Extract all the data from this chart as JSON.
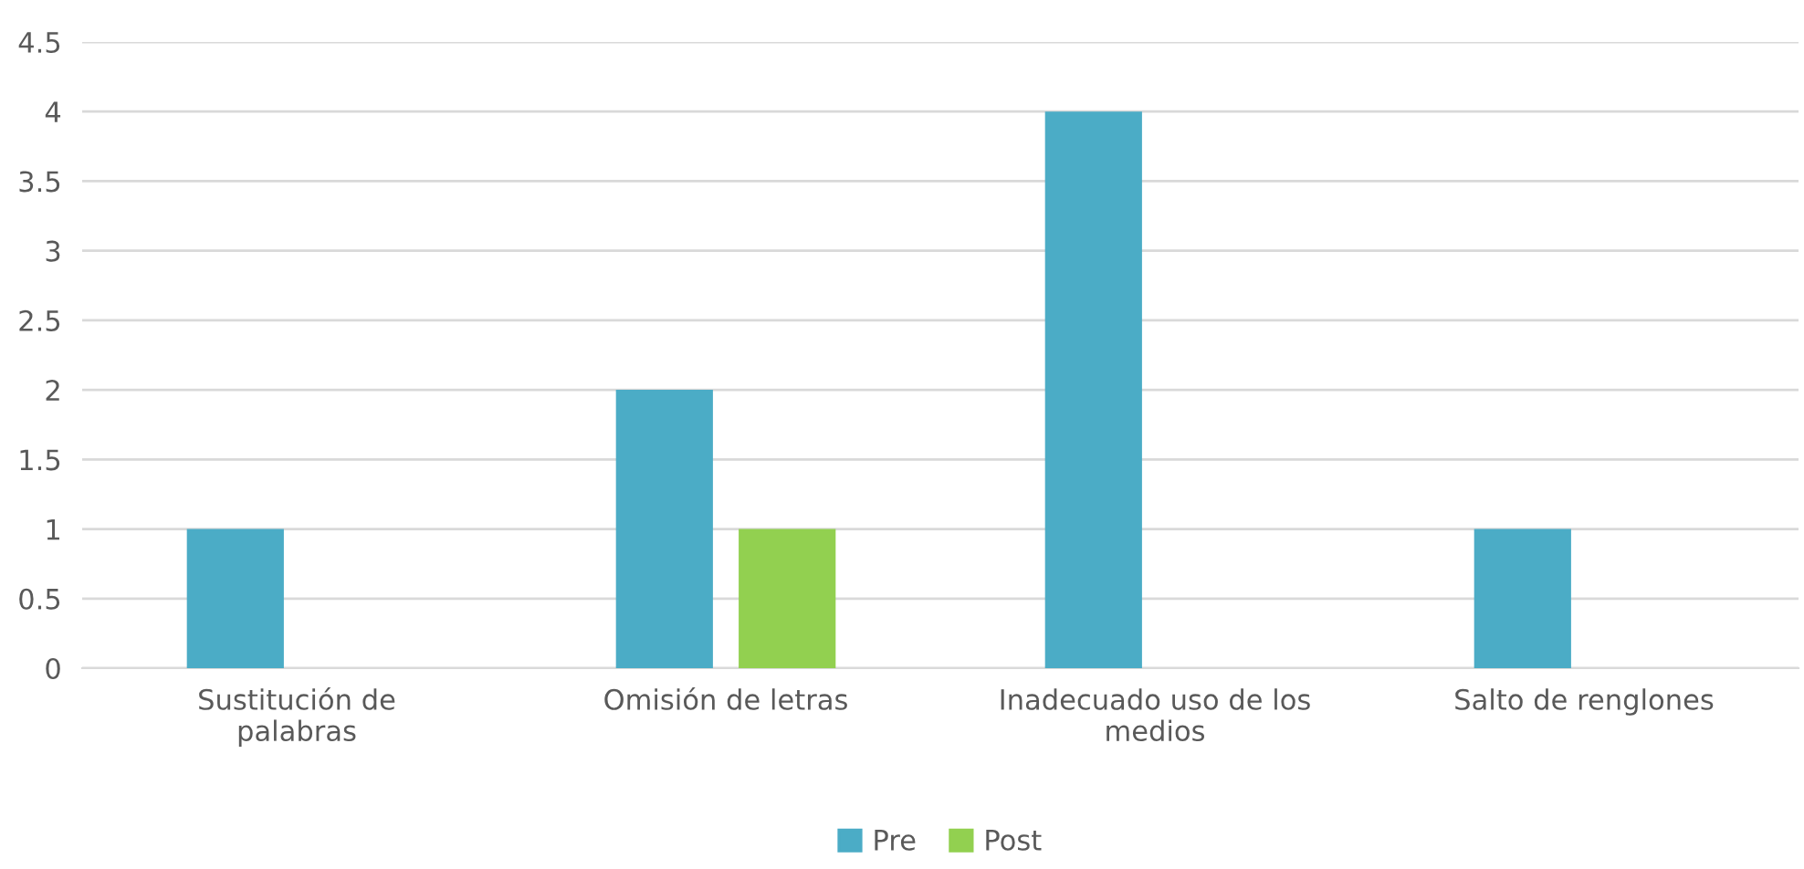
{
  "chart_data": {
    "type": "bar",
    "categories": [
      "Sustitución de palabras",
      "Omisión de letras",
      "Inadecuado uso de los medios",
      "Salto de renglones"
    ],
    "series": [
      {
        "name": "Pre",
        "color": "#4bacc6",
        "values": [
          1,
          2,
          4,
          1
        ]
      },
      {
        "name": "Post",
        "color": "#92d050",
        "values": [
          0,
          1,
          0,
          0
        ]
      }
    ],
    "ylim": [
      0,
      4.5
    ],
    "yticks": [
      0,
      0.5,
      1,
      1.5,
      2,
      2.5,
      3,
      3.5,
      4,
      4.5
    ],
    "grid": "y",
    "legend": "bottom"
  }
}
